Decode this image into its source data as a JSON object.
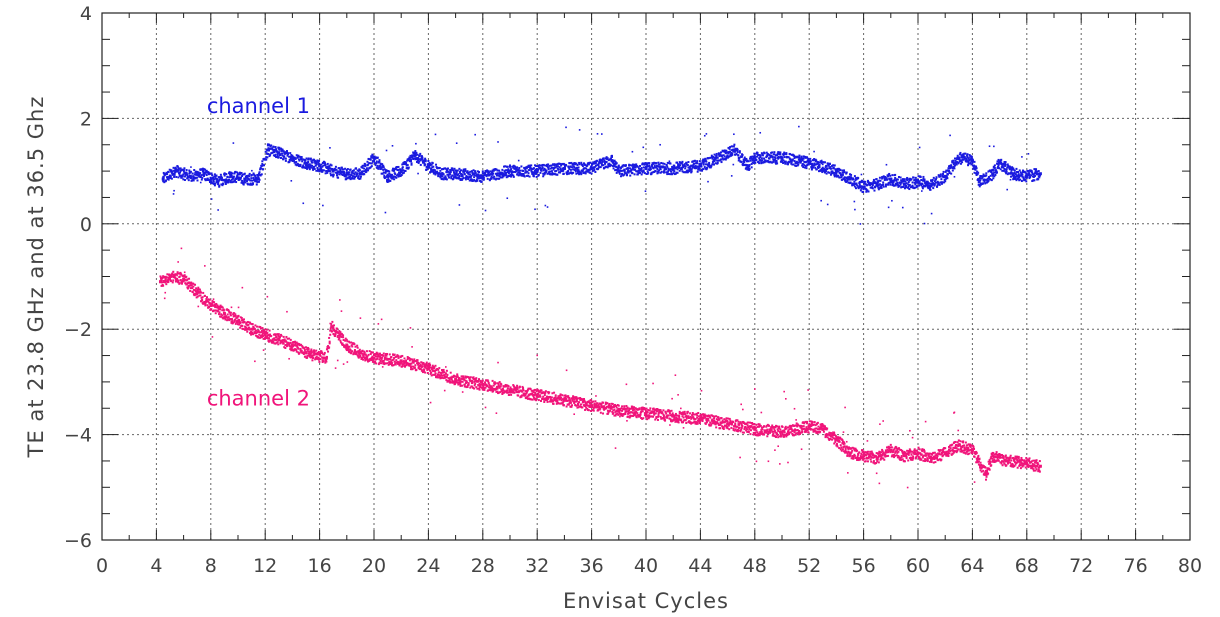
{
  "chart_data": {
    "type": "scatter",
    "title": "",
    "xlabel": "Envisat Cycles",
    "ylabel": "TE at 23.8 GHz and at 36.5 Ghz",
    "xlim": [
      0,
      80
    ],
    "ylim": [
      -6,
      4
    ],
    "x_ticks": [
      "0",
      "4",
      "8",
      "12",
      "16",
      "20",
      "24",
      "28",
      "32",
      "36",
      "40",
      "44",
      "48",
      "52",
      "56",
      "60",
      "64",
      "68",
      "72",
      "76",
      "80"
    ],
    "y_ticks": [
      "-6",
      "-4",
      "-2",
      "0",
      "2",
      "4"
    ],
    "grid": true,
    "series": [
      {
        "name": "channel 1",
        "color": "#1a1adf",
        "points": [
          [
            4.5,
            0.85
          ],
          [
            5.5,
            1.0
          ],
          [
            6.5,
            0.9
          ],
          [
            7.5,
            0.95
          ],
          [
            8.5,
            0.8
          ],
          [
            9.5,
            0.9
          ],
          [
            10.5,
            0.85
          ],
          [
            11.5,
            0.85
          ],
          [
            12.2,
            1.4
          ],
          [
            13,
            1.35
          ],
          [
            14,
            1.25
          ],
          [
            15,
            1.15
          ],
          [
            16,
            1.1
          ],
          [
            17,
            1.0
          ],
          [
            18,
            0.95
          ],
          [
            19,
            0.95
          ],
          [
            20,
            1.25
          ],
          [
            21,
            0.9
          ],
          [
            22,
            1.0
          ],
          [
            23,
            1.3
          ],
          [
            24,
            1.1
          ],
          [
            25,
            0.95
          ],
          [
            26,
            0.95
          ],
          [
            28,
            0.9
          ],
          [
            30,
            1.0
          ],
          [
            32,
            1.0
          ],
          [
            34,
            1.05
          ],
          [
            36,
            1.05
          ],
          [
            37.5,
            1.2
          ],
          [
            38,
            1.0
          ],
          [
            40,
            1.05
          ],
          [
            42,
            1.05
          ],
          [
            44,
            1.1
          ],
          [
            45,
            1.2
          ],
          [
            46.5,
            1.4
          ],
          [
            47.5,
            1.1
          ],
          [
            48,
            1.25
          ],
          [
            50,
            1.25
          ],
          [
            52,
            1.15
          ],
          [
            54,
            1.0
          ],
          [
            55,
            0.85
          ],
          [
            56,
            0.7
          ],
          [
            57,
            0.75
          ],
          [
            58,
            0.85
          ],
          [
            59,
            0.75
          ],
          [
            60,
            0.8
          ],
          [
            61,
            0.75
          ],
          [
            62,
            0.9
          ],
          [
            63,
            1.25
          ],
          [
            64,
            1.2
          ],
          [
            64.5,
            0.8
          ],
          [
            65.5,
            0.95
          ],
          [
            66,
            1.15
          ],
          [
            67,
            0.95
          ],
          [
            68,
            0.9
          ],
          [
            69,
            0.95
          ]
        ]
      },
      {
        "name": "channel 2",
        "color": "#f0147a",
        "points": [
          [
            4.3,
            -1.1
          ],
          [
            5,
            -1.0
          ],
          [
            6,
            -1.05
          ],
          [
            7,
            -1.3
          ],
          [
            8,
            -1.55
          ],
          [
            9,
            -1.7
          ],
          [
            10,
            -1.85
          ],
          [
            11,
            -2.0
          ],
          [
            12,
            -2.1
          ],
          [
            13,
            -2.2
          ],
          [
            14,
            -2.3
          ],
          [
            15,
            -2.45
          ],
          [
            16.5,
            -2.55
          ],
          [
            16.9,
            -1.95
          ],
          [
            18,
            -2.3
          ],
          [
            19,
            -2.45
          ],
          [
            20,
            -2.55
          ],
          [
            22,
            -2.6
          ],
          [
            24,
            -2.75
          ],
          [
            26,
            -2.95
          ],
          [
            28,
            -3.05
          ],
          [
            30,
            -3.15
          ],
          [
            32,
            -3.25
          ],
          [
            34,
            -3.35
          ],
          [
            36,
            -3.45
          ],
          [
            38,
            -3.55
          ],
          [
            40,
            -3.6
          ],
          [
            42,
            -3.65
          ],
          [
            44,
            -3.7
          ],
          [
            46,
            -3.8
          ],
          [
            48,
            -3.9
          ],
          [
            50,
            -3.95
          ],
          [
            52,
            -3.85
          ],
          [
            53,
            -3.9
          ],
          [
            54,
            -4.1
          ],
          [
            55,
            -4.35
          ],
          [
            56,
            -4.4
          ],
          [
            57,
            -4.45
          ],
          [
            58,
            -4.3
          ],
          [
            59,
            -4.4
          ],
          [
            60,
            -4.35
          ],
          [
            61,
            -4.45
          ],
          [
            62,
            -4.35
          ],
          [
            63,
            -4.2
          ],
          [
            64,
            -4.3
          ],
          [
            65,
            -4.75
          ],
          [
            65.5,
            -4.4
          ],
          [
            66.5,
            -4.5
          ],
          [
            68,
            -4.55
          ],
          [
            69,
            -4.6
          ]
        ]
      }
    ],
    "annotations": [
      {
        "text": "channel 1",
        "x": 11.5,
        "y": 2.1,
        "color": "#1a1adf"
      },
      {
        "text": "channel 2",
        "x": 11.5,
        "y": -3.45,
        "color": "#f0147a"
      }
    ]
  }
}
